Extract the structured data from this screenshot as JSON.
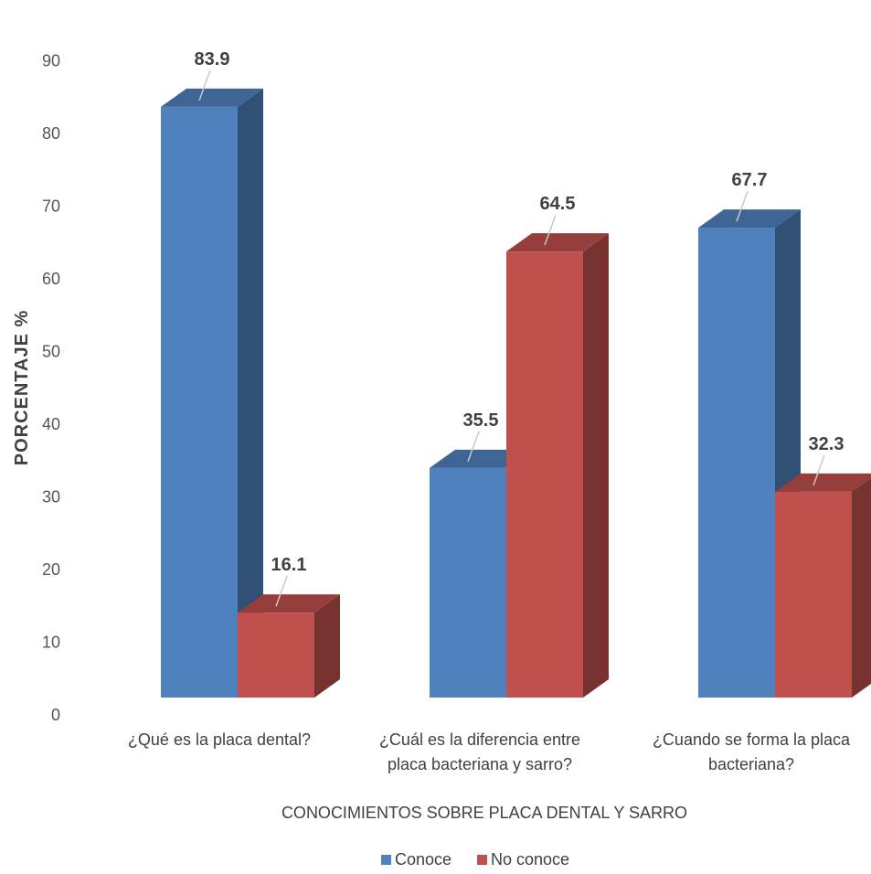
{
  "chart_data": {
    "type": "bar",
    "style": "3d-clustered-column",
    "categories": [
      [
        "¿Qué es la placa dental?"
      ],
      [
        "¿Cuál es la diferencia entre",
        "placa bacteriana y sarro?"
      ],
      [
        "¿Cuando se forma la placa",
        "bacteriana?"
      ]
    ],
    "series": [
      {
        "name": "Conoce",
        "values": [
          83.9,
          35.5,
          67.7
        ],
        "color": "#4F81BD"
      },
      {
        "name": "No conoce",
        "values": [
          16.1,
          64.5,
          32.3
        ],
        "color": "#C0504D"
      }
    ],
    "xlabel": "CONOCIMIENTOS SOBRE PLACA DENTAL Y SARRO",
    "ylabel": "PORCENTAJE  %",
    "ylim": [
      0,
      90
    ],
    "yticks": [
      0,
      10,
      20,
      30,
      40,
      50,
      60,
      70,
      80,
      90
    ],
    "grid": false,
    "legend_position": "bottom"
  }
}
